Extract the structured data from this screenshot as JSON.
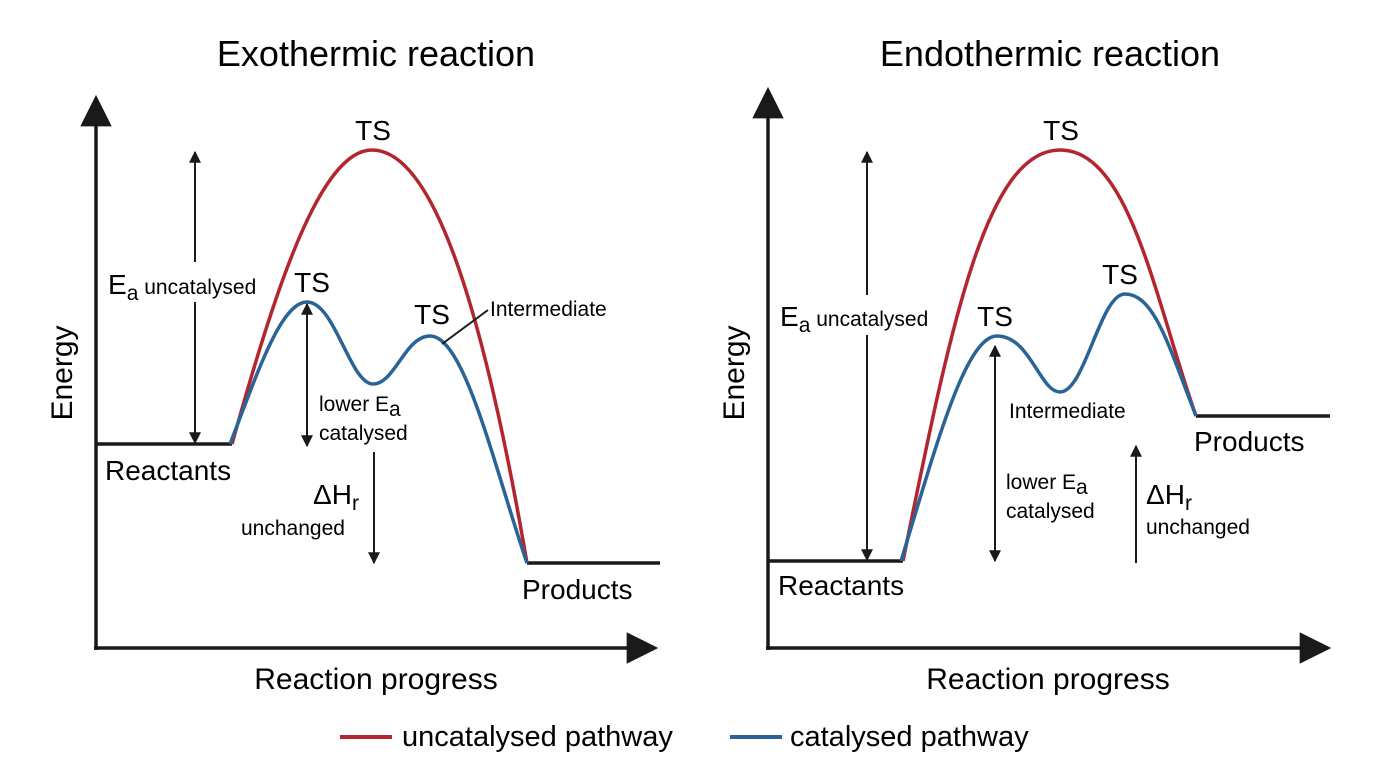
{
  "colors": {
    "uncatalysed": "#b3262e",
    "catalysed": "#2a6496",
    "ink": "#1a1a1a"
  },
  "panels": [
    {
      "title": "Exothermic reaction",
      "ylabel": "Energy",
      "xlabel": "Reaction progress",
      "reactants": "Reactants",
      "products": "Products",
      "ts_labels": [
        "TS",
        "TS",
        "TS"
      ],
      "intermediate": "Intermediate",
      "ea_uncat": {
        "symbol": "E",
        "sub": "a",
        "text": " uncatalysed"
      },
      "ea_cat": {
        "line1": "lower E",
        "sub": "a",
        "line2": "catalysed"
      },
      "dh": {
        "symbol": "ΔH",
        "sub": "r",
        "line2": "unchanged"
      }
    },
    {
      "title": "Endothermic reaction",
      "ylabel": "Energy",
      "xlabel": "Reaction progress",
      "reactants": "Reactants",
      "products": "Products",
      "ts_labels": [
        "TS",
        "TS",
        "TS"
      ],
      "intermediate": "Intermediate",
      "ea_uncat": {
        "symbol": "E",
        "sub": "a",
        "text": " uncatalysed"
      },
      "ea_cat": {
        "line1": "lower E",
        "sub": "a",
        "line2": "catalysed"
      },
      "dh": {
        "symbol": "ΔH",
        "sub": "r",
        "line2": "unchanged"
      }
    }
  ],
  "legend": [
    {
      "label": "uncatalysed pathway",
      "color_key": "uncatalysed"
    },
    {
      "label": "catalysed pathway",
      "color_key": "catalysed"
    }
  ]
}
